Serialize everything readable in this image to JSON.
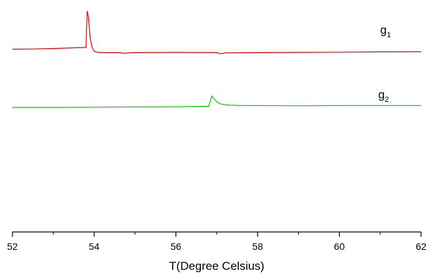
{
  "chart_data": {
    "type": "line",
    "title": "",
    "xlabel": "T(Degree Celsius)",
    "ylabel": "",
    "xlim": [
      52,
      62
    ],
    "ylim": [
      0,
      10
    ],
    "grid": false,
    "x_major_ticks": [
      52,
      54,
      56,
      58,
      60,
      62
    ],
    "x_minor_ticks": [
      53,
      55,
      57,
      59,
      61
    ],
    "y_axis_visible": false,
    "series": [
      {
        "label_main": "g",
        "label_sub": "1",
        "color": "#e00000",
        "x": [
          52.0,
          52.5,
          53.0,
          53.5,
          53.8,
          53.83,
          53.86,
          53.9,
          53.95,
          54.0,
          54.1,
          54.3,
          54.6,
          54.75,
          54.8,
          55.0,
          56.0,
          57.0,
          57.1,
          57.2,
          58.0,
          59.0,
          60.0,
          61.0,
          62.0
        ],
        "y": [
          8.07,
          8.08,
          8.1,
          8.13,
          8.15,
          9.75,
          9.5,
          8.6,
          8.15,
          7.98,
          7.93,
          7.92,
          7.92,
          7.89,
          7.9,
          7.92,
          7.93,
          7.92,
          7.87,
          7.91,
          7.92,
          7.93,
          7.94,
          7.95,
          7.96
        ]
      },
      {
        "label_main": "g",
        "label_sub": "2",
        "color": "#00d000",
        "x": [
          52.0,
          53.0,
          54.0,
          55.0,
          56.0,
          56.8,
          56.88,
          56.93,
          57.0,
          57.1,
          57.3,
          57.6,
          58.0,
          59.0,
          60.0,
          61.0,
          62.0
        ],
        "y": [
          5.5,
          5.5,
          5.51,
          5.52,
          5.53,
          5.55,
          6.0,
          5.9,
          5.75,
          5.65,
          5.6,
          5.58,
          5.58,
          5.57,
          5.58,
          5.58,
          5.58
        ]
      }
    ],
    "series_label_positions": [
      {
        "x": 61.0,
        "y": 8.75
      },
      {
        "x": 60.95,
        "y": 5.9
      }
    ]
  }
}
